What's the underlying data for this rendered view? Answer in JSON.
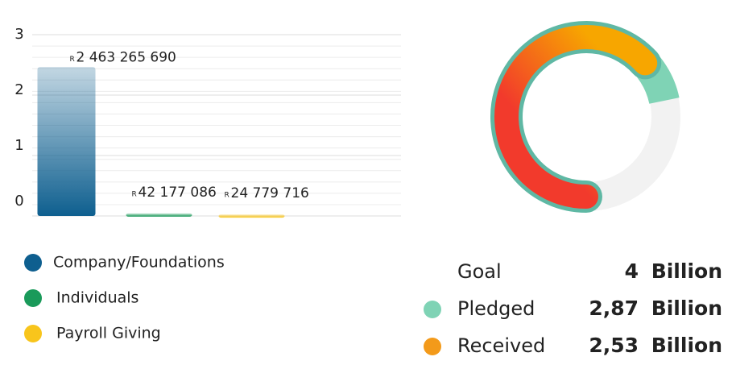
{
  "chart_data": [
    {
      "type": "bar",
      "categories": [
        "Company/Foundations",
        "Individuals",
        "Payroll Giving"
      ],
      "values": [
        2.46326569,
        0.042177086,
        0.024779716
      ],
      "value_labels": [
        "2 463 265 690",
        "42 177 086",
        "24 779 716"
      ],
      "currency": "R",
      "colors": [
        "#0e5f8f",
        "#1a9a5a",
        "#f8c51c"
      ],
      "ylim": [
        0,
        3
      ],
      "yticks": [
        0,
        1,
        2,
        3
      ],
      "grid": true,
      "legend": "bottom"
    },
    {
      "type": "donut",
      "goal_name": "Goal",
      "goal": 4,
      "unit": "Billion",
      "series": [
        {
          "name": "Pledged",
          "color": "#7fd3b5",
          "value": 2.87,
          "value_label": "2,87"
        },
        {
          "name": "Received",
          "color": "#f39a1a",
          "value": 2.53,
          "value_label": "2,53"
        }
      ]
    }
  ]
}
